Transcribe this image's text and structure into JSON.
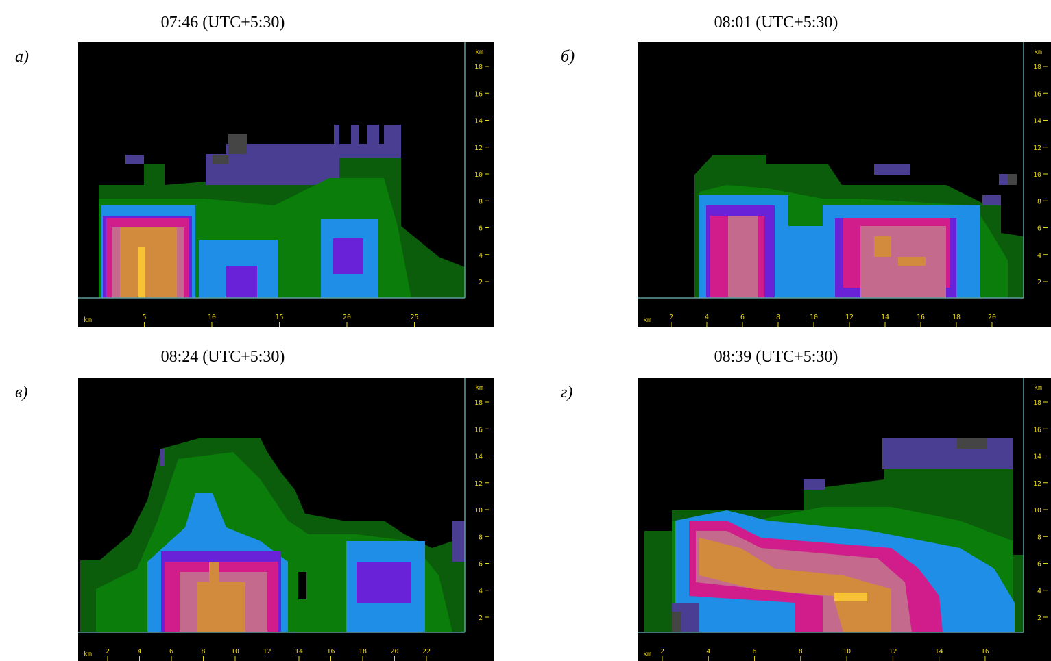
{
  "panels": [
    {
      "label": "а)",
      "time": "07:46 (UTC+5:30)",
      "x_axis_unit": "km",
      "y_axis_unit": "km",
      "x_ticks": [
        5,
        10,
        15,
        20,
        25
      ],
      "y_ticks": [
        2,
        4,
        6,
        8,
        10,
        12,
        14,
        16,
        18
      ]
    },
    {
      "label": "б)",
      "time": "08:01 (UTC+5:30)",
      "x_axis_unit": "km",
      "y_axis_unit": "km",
      "x_ticks": [
        2,
        4,
        6,
        8,
        10,
        12,
        14,
        16,
        18,
        20
      ],
      "y_ticks": [
        2,
        4,
        6,
        8,
        10,
        12,
        14,
        16,
        18
      ]
    },
    {
      "label": "в)",
      "time": "08:24 (UTC+5:30)",
      "x_axis_unit": "km",
      "y_axis_unit": "km",
      "x_ticks": [
        2,
        4,
        6,
        8,
        10,
        12,
        14,
        16,
        18,
        20,
        22
      ],
      "y_ticks": [
        2,
        4,
        6,
        8,
        10,
        12,
        14,
        16,
        18
      ]
    },
    {
      "label": "г)",
      "time": "08:39 (UTC+5:30)",
      "x_axis_unit": "km",
      "y_axis_unit": "km",
      "x_ticks": [
        2,
        4,
        6,
        8,
        10,
        12,
        14,
        16
      ],
      "y_ticks": [
        2,
        4,
        6,
        8,
        10,
        12,
        14,
        16,
        18
      ]
    }
  ]
}
